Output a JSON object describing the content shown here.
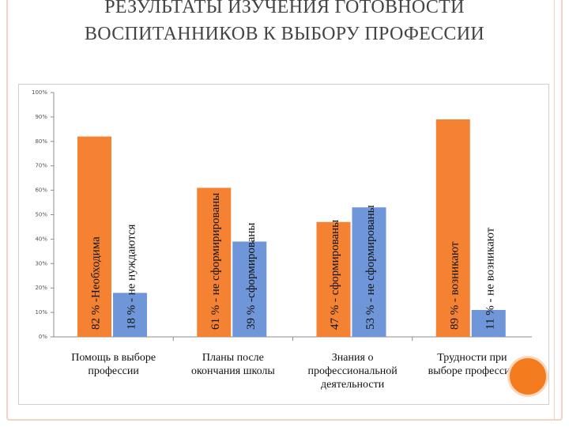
{
  "title": {
    "line1": "РЕЗУЛЬТАТЫ ИЗУЧЕНИЯ ГОТОВНОСТИ",
    "line2": "ВОСПИТАННИКОВ К ВЫБОРУ ПРОФЕССИИ"
  },
  "colors": {
    "orange": "#f58232",
    "blue": "#6f96d8",
    "title": "#444444",
    "accent_circle": "#f47b1e"
  },
  "chart_data": {
    "type": "bar",
    "ylim": [
      0,
      100
    ],
    "yticks": [
      0,
      10,
      20,
      30,
      40,
      50,
      60,
      70,
      80,
      90,
      100
    ],
    "ytick_suffix": "%",
    "grid": false,
    "categories": [
      [
        "Помощь в выборе",
        "профессии"
      ],
      [
        "Планы после",
        "окончания школы"
      ],
      [
        "Знания о",
        "профессиональной",
        "деятельности"
      ],
      [
        "Трудности при",
        "выборе профессии"
      ]
    ],
    "bars": [
      [
        {
          "value": 82,
          "color": "orange",
          "label": "82 % -Необходима"
        },
        {
          "value": 18,
          "color": "blue",
          "label": "18 % - не нуждаются"
        }
      ],
      [
        {
          "value": 61,
          "color": "orange",
          "label": "61 % - не сформирированы"
        },
        {
          "value": 39,
          "color": "blue",
          "label": "39 % -сформированы"
        }
      ],
      [
        {
          "value": 47,
          "color": "orange",
          "label": "47 % - сформированы"
        },
        {
          "value": 53,
          "color": "blue",
          "label": "53 % - не сформированы"
        }
      ],
      [
        {
          "value": 89,
          "color": "orange",
          "label": "89 % - возникают"
        },
        {
          "value": 11,
          "color": "blue",
          "label": "11 % - не возникают"
        }
      ]
    ]
  }
}
